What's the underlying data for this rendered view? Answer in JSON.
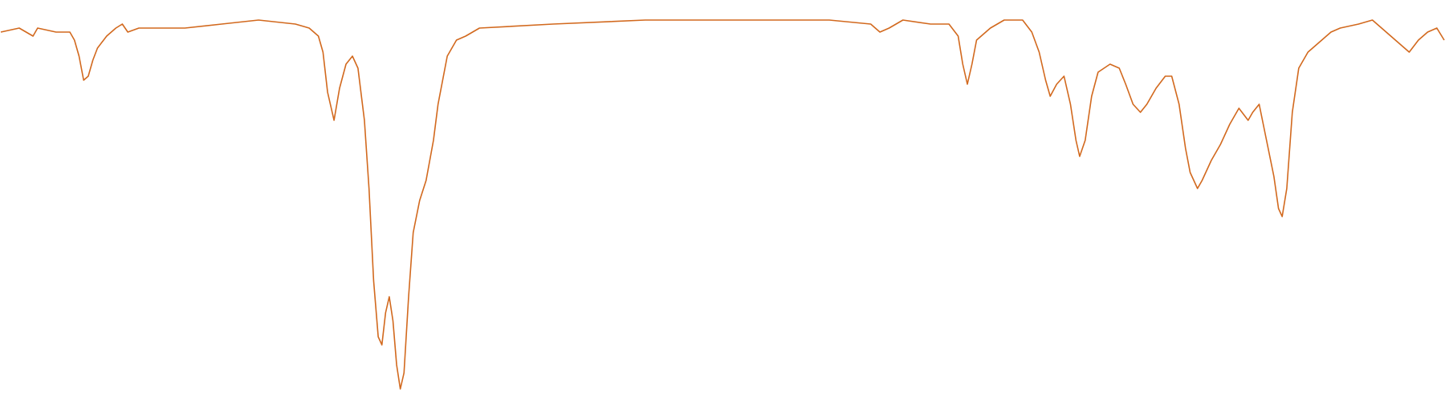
{
  "chart_data": {
    "type": "line",
    "color": "#d2691e",
    "x": [
      0,
      20,
      35,
      40,
      60,
      75,
      80,
      85,
      90,
      95,
      100,
      105,
      115,
      125,
      132,
      138,
      150,
      180,
      200,
      240,
      280,
      320,
      335,
      345,
      350,
      355,
      362,
      368,
      375,
      382,
      388,
      395,
      400,
      405,
      410,
      414,
      418,
      422,
      426,
      430,
      434,
      438,
      443,
      448,
      455,
      462,
      470,
      475,
      485,
      495,
      505,
      520,
      600,
      700,
      800,
      900,
      945,
      955,
      965,
      980,
      1010,
      1030,
      1040,
      1045,
      1050,
      1055,
      1060,
      1075,
      1090,
      1110,
      1120,
      1128,
      1135,
      1140,
      1147,
      1155,
      1162,
      1168,
      1172,
      1178,
      1185,
      1192,
      1205,
      1215,
      1222,
      1230,
      1238,
      1245,
      1255,
      1265,
      1272,
      1280,
      1287,
      1292,
      1300,
      1305,
      1315,
      1325,
      1335,
      1345,
      1355,
      1360,
      1367,
      1375,
      1383,
      1388,
      1392,
      1397,
      1403,
      1410,
      1420,
      1435,
      1445,
      1455,
      1475,
      1490,
      1500,
      1510,
      1520,
      1530,
      1540,
      1550,
      1560,
      1568
    ],
    "values": [
      92,
      93,
      91,
      93,
      92,
      92,
      90,
      86,
      80,
      81,
      85,
      88,
      91,
      93,
      94,
      92,
      93,
      93,
      93,
      94,
      95,
      94,
      93,
      91,
      87,
      77,
      70,
      78,
      84,
      86,
      83,
      70,
      53,
      30,
      16,
      14,
      22,
      26,
      20,
      9,
      3,
      7,
      26,
      42,
      50,
      55,
      65,
      74,
      86,
      90,
      91,
      93,
      94,
      95,
      95,
      95,
      94,
      92,
      93,
      95,
      94,
      94,
      91,
      84,
      79,
      84,
      90,
      93,
      95,
      95,
      92,
      87,
      80,
      76,
      79,
      81,
      74,
      65,
      61,
      65,
      76,
      82,
      84,
      83,
      79,
      74,
      72,
      74,
      78,
      81,
      81,
      74,
      63,
      57,
      53,
      55,
      60,
      64,
      69,
      73,
      70,
      72,
      74,
      65,
      56,
      48,
      46,
      53,
      72,
      83,
      87,
      90,
      92,
      93,
      94,
      95,
      93,
      91,
      89,
      87,
      90,
      92,
      93,
      90
    ],
    "xlim": [
      0,
      1568
    ],
    "ylim": [
      0,
      100
    ]
  }
}
